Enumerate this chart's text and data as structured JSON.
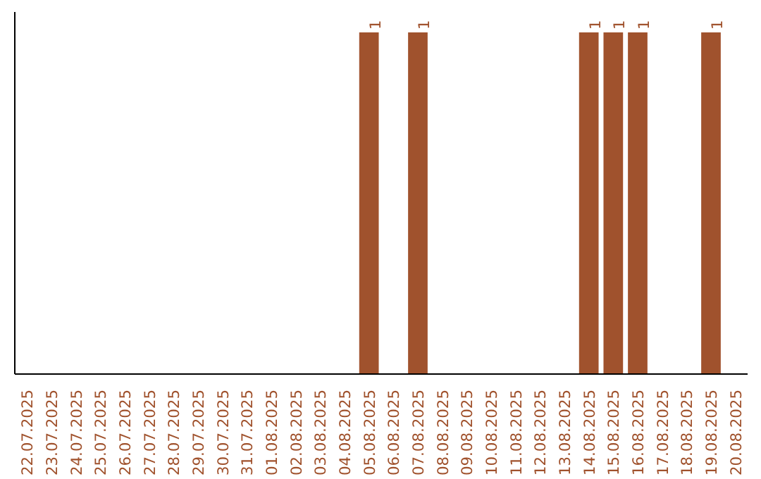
{
  "chart_data": {
    "type": "bar",
    "categories": [
      "22.07.2025",
      "23.07.2025",
      "24.07.2025",
      "25.07.2025",
      "26.07.2025",
      "27.07.2025",
      "28.07.2025",
      "29.07.2025",
      "30.07.2025",
      "31.07.2025",
      "01.08.2025",
      "02.08.2025",
      "03.08.2025",
      "04.08.2025",
      "05.08.2025",
      "06.08.2025",
      "07.08.2025",
      "08.08.2025",
      "09.08.2025",
      "10.08.2025",
      "11.08.2025",
      "12.08.2025",
      "13.08.2025",
      "14.08.2025",
      "15.08.2025",
      "16.08.2025",
      "17.08.2025",
      "18.08.2025",
      "19.08.2025",
      "20.08.2025"
    ],
    "values": [
      null,
      null,
      null,
      null,
      null,
      null,
      null,
      null,
      null,
      null,
      null,
      null,
      null,
      null,
      1,
      null,
      1,
      null,
      null,
      null,
      null,
      null,
      null,
      1,
      1,
      1,
      null,
      null,
      1,
      null
    ],
    "data_labels": true,
    "color": "#a0522d",
    "grid": false,
    "tick_labels": "x"
  }
}
